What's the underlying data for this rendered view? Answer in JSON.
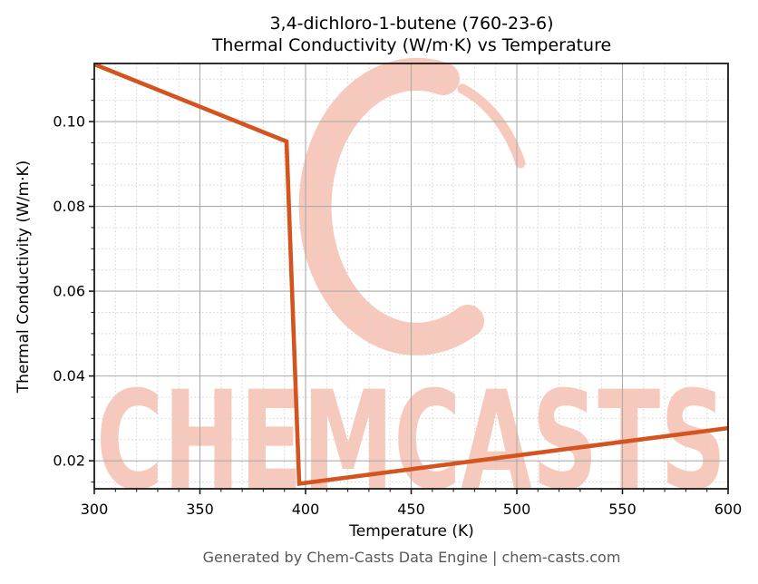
{
  "title": {
    "line1": "3,4-dichloro-1-butene (760-23-6)",
    "line2": "Thermal Conductivity (W/m·K) vs Temperature"
  },
  "footer": "Generated by Chem-Casts Data Engine | chem-casts.com",
  "watermark": {
    "text": "CHEMCASTS",
    "logo": "chemcasts-c-swirl",
    "color": "#f7c9bc"
  },
  "chart_data": {
    "type": "line",
    "title": "3,4-dichloro-1-butene (760-23-6) Thermal Conductivity (W/m·K) vs Temperature",
    "xlabel": "Temperature (K)",
    "ylabel": "Thermal Conductivity (W/m·K)",
    "xlim": [
      300,
      600
    ],
    "ylim": [
      0.0134,
      0.1137
    ],
    "x_tick_values": [
      300,
      350,
      400,
      450,
      500,
      550,
      600
    ],
    "x_tick_labels": [
      "300",
      "350",
      "400",
      "450",
      "500",
      "550",
      "600"
    ],
    "y_tick_values": [
      0.02,
      0.04,
      0.06,
      0.08,
      0.1
    ],
    "y_tick_labels": [
      "0.02",
      "0.04",
      "0.06",
      "0.08",
      "0.10"
    ],
    "x_minor_step": 10,
    "y_minor_step": 0.005,
    "grid": "major-solid-minor-dashed",
    "legend": "none",
    "line_color": "#d4541f",
    "series": [
      {
        "name": "Thermal Conductivity (W/m·K)",
        "points": [
          [
            300,
            0.1135
          ],
          [
            391,
            0.0953
          ],
          [
            397,
            0.0146
          ],
          [
            600,
            0.0277
          ]
        ]
      }
    ]
  }
}
